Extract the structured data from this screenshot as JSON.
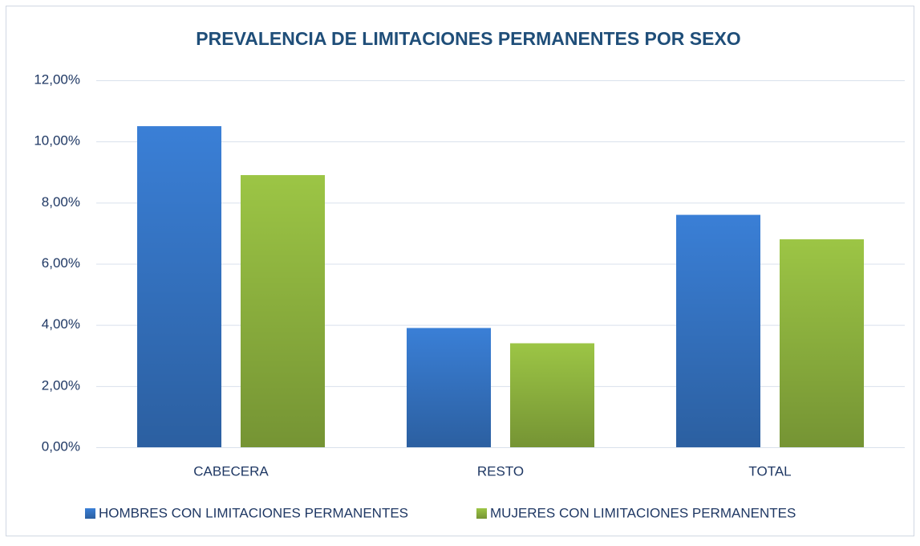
{
  "chart_data": {
    "type": "bar",
    "title": "PREVALENCIA DE LIMITACIONES PERMANENTES POR SEXO",
    "categories": [
      "CABECERA",
      "RESTO",
      "TOTAL"
    ],
    "series": [
      {
        "name": "HOMBRES CON LIMITACIONES PERMANENTES",
        "color": "#3a7fd6",
        "values": [
          10.5,
          3.9,
          7.6
        ]
      },
      {
        "name": "MUJERES CON LIMITACIONES PERMANENTES",
        "color": "#9cc545",
        "values": [
          8.9,
          3.4,
          6.8
        ]
      }
    ],
    "ylim": [
      0,
      12
    ],
    "yticks": [
      {
        "value": 0,
        "label": "0,00%"
      },
      {
        "value": 2,
        "label": "2,00%"
      },
      {
        "value": 4,
        "label": "4,00%"
      },
      {
        "value": 6,
        "label": "6,00%"
      },
      {
        "value": 8,
        "label": "8,00%"
      },
      {
        "value": 10,
        "label": "10,00%"
      },
      {
        "value": 12,
        "label": "12,00%"
      }
    ],
    "grid": true,
    "legend": "bottom"
  }
}
